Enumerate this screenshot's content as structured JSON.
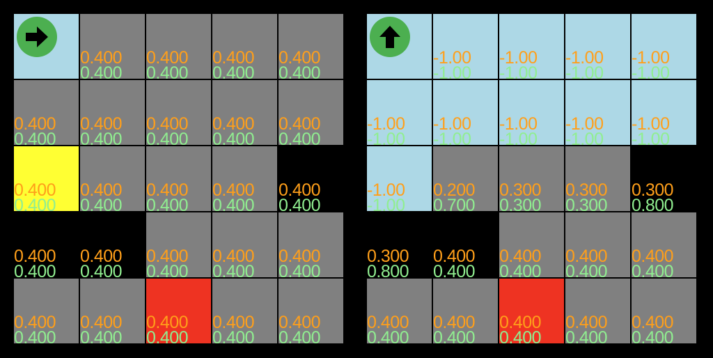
{
  "colors": {
    "gray": "#808080",
    "light": "#add8e6",
    "black": "#000000",
    "yellow": "#ffff33",
    "red": "#ee3322",
    "value_primary": "#ff9f1a",
    "value_secondary": "#90ee90",
    "agent": "#4caf50"
  },
  "grids": [
    {
      "agent": {
        "row": 0,
        "col": 0,
        "icon": "arrow-right-icon"
      },
      "rows": [
        [
          {
            "type": "light",
            "v1": "",
            "v2": ""
          },
          {
            "type": "gray",
            "v1": "0.400",
            "v2": "0.400"
          },
          {
            "type": "gray",
            "v1": "0.400",
            "v2": "0.400"
          },
          {
            "type": "gray",
            "v1": "0.400",
            "v2": "0.400"
          },
          {
            "type": "gray",
            "v1": "0.400",
            "v2": "0.400"
          }
        ],
        [
          {
            "type": "gray",
            "v1": "0.400",
            "v2": "0.400"
          },
          {
            "type": "gray",
            "v1": "0.400",
            "v2": "0.400"
          },
          {
            "type": "gray",
            "v1": "0.400",
            "v2": "0.400"
          },
          {
            "type": "gray",
            "v1": "0.400",
            "v2": "0.400"
          },
          {
            "type": "gray",
            "v1": "0.400",
            "v2": "0.400"
          }
        ],
        [
          {
            "type": "yellow",
            "v1": "0.400",
            "v2": "0.400"
          },
          {
            "type": "gray",
            "v1": "0.400",
            "v2": "0.400"
          },
          {
            "type": "gray",
            "v1": "0.400",
            "v2": "0.400"
          },
          {
            "type": "gray",
            "v1": "0.400",
            "v2": "0.400"
          },
          {
            "type": "black",
            "v1": "0.400",
            "v2": "0.400"
          }
        ],
        [
          {
            "type": "black",
            "v1": "0.400",
            "v2": "0.400"
          },
          {
            "type": "black",
            "v1": "0.400",
            "v2": "0.400"
          },
          {
            "type": "gray",
            "v1": "0.400",
            "v2": "0.400"
          },
          {
            "type": "gray",
            "v1": "0.400",
            "v2": "0.400"
          },
          {
            "type": "gray",
            "v1": "0.400",
            "v2": "0.400"
          }
        ],
        [
          {
            "type": "gray",
            "v1": "0.400",
            "v2": "0.400"
          },
          {
            "type": "gray",
            "v1": "0.400",
            "v2": "0.400"
          },
          {
            "type": "red",
            "v1": "0.400",
            "v2": "0.400"
          },
          {
            "type": "gray",
            "v1": "0.400",
            "v2": "0.400"
          },
          {
            "type": "gray",
            "v1": "0.400",
            "v2": "0.400"
          }
        ]
      ]
    },
    {
      "agent": {
        "row": 0,
        "col": 0,
        "icon": "arrow-up-icon"
      },
      "rows": [
        [
          {
            "type": "light",
            "v1": "",
            "v2": ""
          },
          {
            "type": "light",
            "v1": "-1.00",
            "v2": "-1.00"
          },
          {
            "type": "light",
            "v1": "-1.00",
            "v2": "-1.00"
          },
          {
            "type": "light",
            "v1": "-1.00",
            "v2": "-1.00"
          },
          {
            "type": "light",
            "v1": "-1.00",
            "v2": "-1.00"
          }
        ],
        [
          {
            "type": "light",
            "v1": "-1.00",
            "v2": "-1.00"
          },
          {
            "type": "light",
            "v1": "-1.00",
            "v2": "-1.00"
          },
          {
            "type": "light",
            "v1": "-1.00",
            "v2": "-1.00"
          },
          {
            "type": "light",
            "v1": "-1.00",
            "v2": "-1.00"
          },
          {
            "type": "light",
            "v1": "-1.00",
            "v2": "-1.00"
          }
        ],
        [
          {
            "type": "light",
            "v1": "-1.00",
            "v2": "-1.00"
          },
          {
            "type": "gray",
            "v1": "0.200",
            "v2": "0.700"
          },
          {
            "type": "gray",
            "v1": "0.300",
            "v2": "0.300"
          },
          {
            "type": "gray",
            "v1": "0.300",
            "v2": "0.300"
          },
          {
            "type": "black",
            "v1": "0.300",
            "v2": "0.800"
          }
        ],
        [
          {
            "type": "black",
            "v1": "0.300",
            "v2": "0.800"
          },
          {
            "type": "black",
            "v1": "0.400",
            "v2": "0.400"
          },
          {
            "type": "gray",
            "v1": "0.400",
            "v2": "0.400"
          },
          {
            "type": "gray",
            "v1": "0.400",
            "v2": "0.400"
          },
          {
            "type": "gray",
            "v1": "0.400",
            "v2": "0.400"
          }
        ],
        [
          {
            "type": "gray",
            "v1": "0.400",
            "v2": "0.400"
          },
          {
            "type": "gray",
            "v1": "0.400",
            "v2": "0.400"
          },
          {
            "type": "red",
            "v1": "0.400",
            "v2": "0.400"
          },
          {
            "type": "gray",
            "v1": "0.400",
            "v2": "0.400"
          },
          {
            "type": "gray",
            "v1": "0.400",
            "v2": "0.400"
          }
        ]
      ]
    }
  ]
}
